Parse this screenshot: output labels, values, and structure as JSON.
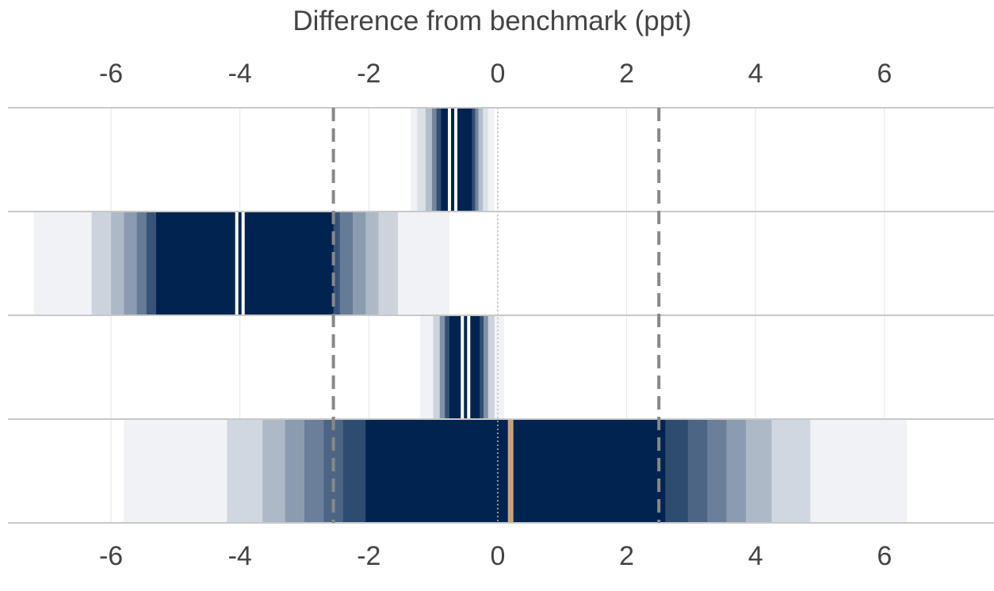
{
  "chart_data": {
    "type": "interval-band",
    "title": "",
    "xlabel": "Difference from benchmark (ppt)",
    "ylabel": "",
    "xlim": [
      -7.6,
      7.7
    ],
    "xticks": [
      -6,
      -4,
      -2,
      0,
      2,
      4,
      6
    ],
    "tick_labels": [
      "-6",
      "-4",
      "-2",
      "0",
      "2",
      "4",
      "6"
    ],
    "reference_lines": [
      -2.55,
      2.5
    ],
    "zero_line": 0,
    "grid": true,
    "colors": {
      "band": "#002350",
      "estimate_line": "#ffffff",
      "highlight_estimate": "#c9a27a",
      "reference_line": "#888888",
      "gridline": "#e6e6e6",
      "row_border": "#c8c8c8",
      "text": "#444444"
    },
    "rows": [
      {
        "estimate": -0.7,
        "highlight": false,
        "bands": [
          {
            "lo": -1.35,
            "hi": -0.05,
            "level": 0.06
          },
          {
            "lo": -1.25,
            "hi": -0.15,
            "level": 0.14
          },
          {
            "lo": -1.12,
            "hi": -0.23,
            "level": 0.3
          },
          {
            "lo": -1.02,
            "hi": -0.3,
            "level": 0.55
          },
          {
            "lo": -0.95,
            "hi": -0.35,
            "level": 0.8
          },
          {
            "lo": -0.88,
            "hi": -0.4,
            "level": 1.0
          }
        ]
      },
      {
        "estimate": -4.0,
        "highlight": false,
        "bands": [
          {
            "lo": -7.2,
            "hi": -0.75,
            "level": 0.06
          },
          {
            "lo": -6.3,
            "hi": -1.55,
            "level": 0.2
          },
          {
            "lo": -6.0,
            "hi": -1.85,
            "level": 0.32
          },
          {
            "lo": -5.8,
            "hi": -2.05,
            "level": 0.45
          },
          {
            "lo": -5.6,
            "hi": -2.25,
            "level": 0.6
          },
          {
            "lo": -5.45,
            "hi": -2.45,
            "level": 0.78
          },
          {
            "lo": -5.3,
            "hi": -2.55,
            "level": 1.0
          }
        ]
      },
      {
        "estimate": -0.5,
        "highlight": false,
        "bands": [
          {
            "lo": -1.2,
            "hi": 0.1,
            "level": 0.06
          },
          {
            "lo": -1.0,
            "hi": -0.05,
            "level": 0.2
          },
          {
            "lo": -0.9,
            "hi": -0.15,
            "level": 0.5
          },
          {
            "lo": -0.82,
            "hi": -0.22,
            "level": 0.8
          },
          {
            "lo": -0.75,
            "hi": -0.28,
            "level": 1.0
          }
        ]
      },
      {
        "estimate": 0.2,
        "highlight": true,
        "bands": [
          {
            "lo": -5.8,
            "hi": 6.35,
            "level": 0.06
          },
          {
            "lo": -4.2,
            "hi": 4.85,
            "level": 0.18
          },
          {
            "lo": -3.65,
            "hi": 4.25,
            "level": 0.32
          },
          {
            "lo": -3.3,
            "hi": 3.85,
            "level": 0.45
          },
          {
            "lo": -3.0,
            "hi": 3.55,
            "level": 0.58
          },
          {
            "lo": -2.7,
            "hi": 3.25,
            "level": 0.7
          },
          {
            "lo": -2.4,
            "hi": 2.95,
            "level": 0.82
          },
          {
            "lo": -2.05,
            "hi": 2.6,
            "level": 1.0
          }
        ]
      }
    ]
  }
}
